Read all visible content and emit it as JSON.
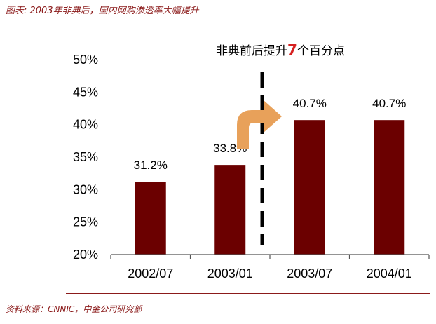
{
  "header": {
    "title": "图表: 2003年非典后，国内网购渗透率大幅提升"
  },
  "footer": {
    "source": "资料来源：CNNIC，中金公司研究部"
  },
  "colors": {
    "bar": "#6b0000",
    "arrow": "#e8a15a",
    "accent_text": "#d62020",
    "rule": "#8b1a1a"
  },
  "chart_data": {
    "type": "bar",
    "categories": [
      "2002/07",
      "2003/01",
      "2003/07",
      "2004/01"
    ],
    "values": [
      31.2,
      33.8,
      40.7,
      40.7
    ],
    "data_labels": [
      "31.2%",
      "33.8%",
      "40.7%",
      "40.7%"
    ],
    "ylim": [
      20,
      50
    ],
    "yticks": [
      "20%",
      "25%",
      "30%",
      "35%",
      "40%",
      "45%",
      "50%"
    ],
    "annotation": {
      "prefix": "非典前后提升",
      "highlight": "7",
      "suffix": "个百分点"
    },
    "divider": "dashed-vertical-between-2003/01-and-2003/07",
    "arrow_icon": "curved-arrow-right-icon"
  }
}
